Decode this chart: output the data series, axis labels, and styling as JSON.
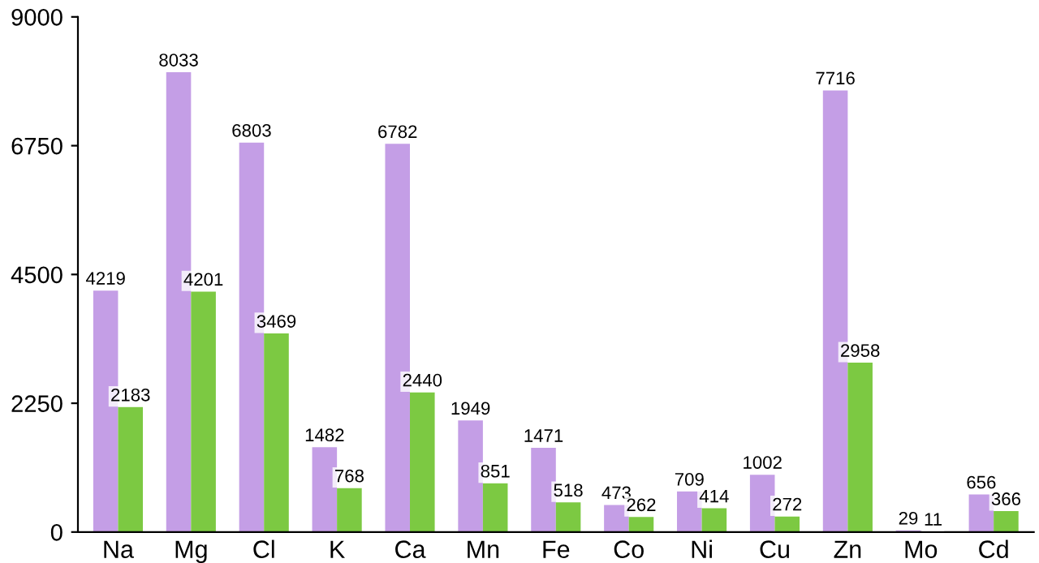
{
  "chart_data": {
    "type": "bar",
    "categories": [
      "Na",
      "Mg",
      "Cl",
      "K",
      "Ca",
      "Mn",
      "Fe",
      "Co",
      "Ni",
      "Cu",
      "Zn",
      "Mo",
      "Cd"
    ],
    "series": [
      {
        "color": "#c49ee6",
        "values": [
          4219,
          8033,
          6803,
          1482,
          6782,
          1949,
          1471,
          473,
          709,
          1002,
          7716,
          29,
          656
        ]
      },
      {
        "color": "#7cc942",
        "values": [
          2183,
          4201,
          3469,
          768,
          2440,
          851,
          518,
          262,
          414,
          272,
          2958,
          11,
          366
        ]
      }
    ],
    "ylim": [
      0,
      9000
    ],
    "yticks": [
      0,
      2250,
      4500,
      6750,
      9000
    ],
    "grid": false,
    "data_labels": true
  }
}
